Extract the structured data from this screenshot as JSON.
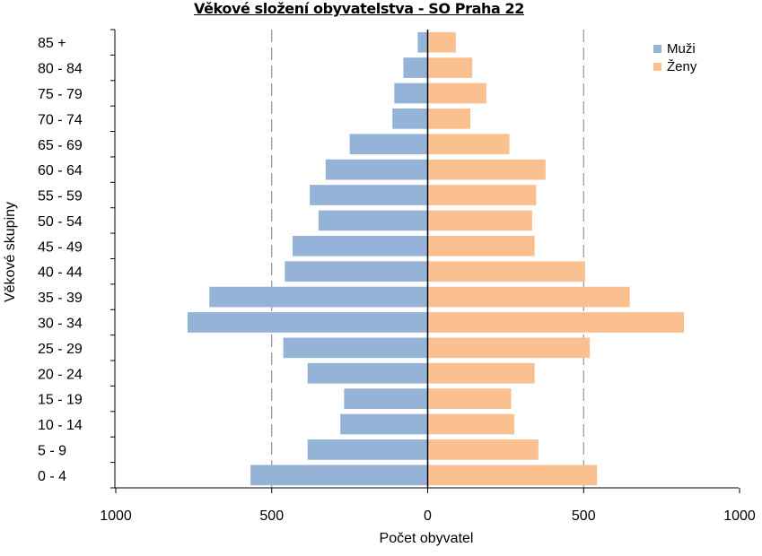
{
  "chart_data": {
    "type": "bar",
    "orientation": "horizontal",
    "title": "Věkové složení obyvatelstva - SO Praha 22",
    "xlabel": "Počet obyvatel",
    "ylabel": "Věkové skupiny",
    "xlim": [
      -1000,
      1000
    ],
    "xticks": [
      -1000,
      -500,
      0,
      500,
      1000
    ],
    "xtick_labels": [
      "1000",
      "500",
      "0",
      "500",
      "1000"
    ],
    "grid": "vertical dashed at ±500",
    "legend_position": "top-right",
    "categories": [
      "0 -  4",
      "5 -  9",
      "10 - 14",
      "15 - 19",
      "20 - 24",
      "25 - 29",
      "30 - 34",
      "35 - 39",
      "40 - 44",
      "45 - 49",
      "50 - 54",
      "55 - 59",
      "60 - 64",
      "65 - 69",
      "70 - 74",
      "75 - 79",
      "80 - 84",
      "85 +"
    ],
    "series": [
      {
        "name": "Muži",
        "color": "#95b3d7",
        "side": "left",
        "values": [
          568,
          385,
          280,
          268,
          385,
          463,
          770,
          700,
          458,
          433,
          350,
          378,
          327,
          250,
          113,
          107,
          78,
          32
        ]
      },
      {
        "name": "Ženy",
        "color": "#fac090",
        "side": "right",
        "values": [
          543,
          355,
          278,
          268,
          343,
          520,
          822,
          648,
          505,
          343,
          335,
          348,
          378,
          262,
          137,
          188,
          143,
          90
        ]
      }
    ]
  }
}
